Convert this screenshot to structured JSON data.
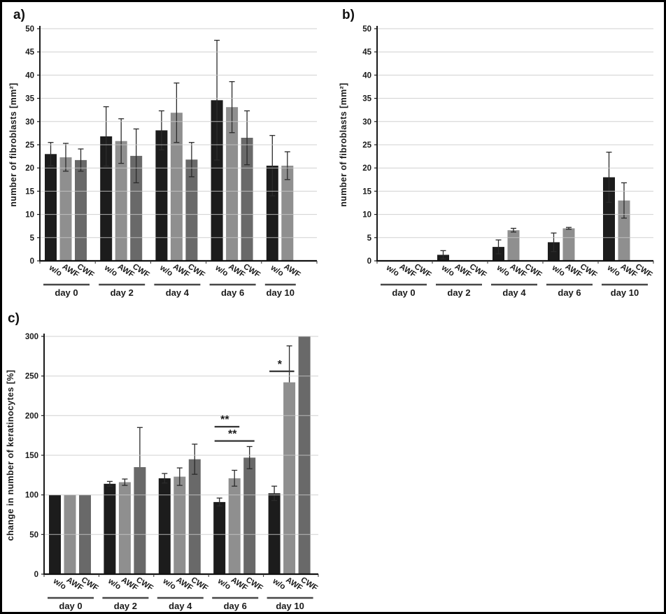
{
  "figure": {
    "background": "#ffffff",
    "border_color": "#000000",
    "panels": [
      {
        "label": "a)"
      },
      {
        "label": "b)"
      },
      {
        "label": "c)"
      }
    ]
  },
  "chart_data": [
    {
      "type": "bar",
      "panel_label": "a)",
      "title": "",
      "xlabel": "",
      "ylabel": "number of fibroblasts [mm²]",
      "ylim": [
        0,
        50
      ],
      "ytick_step": 5,
      "grid": true,
      "legend_position": "none",
      "series_labels": [
        "w/o",
        "AWF",
        "CWF"
      ],
      "bar_colors": [
        "#1c1c1c",
        "#8f8f8f",
        "#696969"
      ],
      "categories": [
        "day 0",
        "day 2",
        "day 4",
        "day 6",
        "day 10"
      ],
      "groups": [
        {
          "category": "day 0",
          "labels": [
            "w/o",
            "AWF",
            "CWF"
          ],
          "values": [
            23.0,
            22.3,
            21.7
          ],
          "errors": [
            2.5,
            3.0,
            2.4
          ]
        },
        {
          "category": "day 2",
          "labels": [
            "w/o",
            "AWF",
            "CWF"
          ],
          "values": [
            26.8,
            25.8,
            22.6
          ],
          "errors": [
            6.4,
            4.8,
            5.8
          ]
        },
        {
          "category": "day 4",
          "labels": [
            "w/o",
            "AWF",
            "CWF"
          ],
          "values": [
            28.1,
            31.9,
            21.8
          ],
          "errors": [
            4.2,
            6.4,
            3.7
          ]
        },
        {
          "category": "day 6",
          "labels": [
            "w/o",
            "AWF",
            "CWF"
          ],
          "values": [
            34.6,
            33.1,
            26.5
          ],
          "errors": [
            12.9,
            5.5,
            5.8
          ]
        },
        {
          "category": "day 10",
          "labels": [
            "w/o",
            "AWF"
          ],
          "values": [
            20.5,
            20.5,
            null
          ],
          "errors": [
            6.5,
            3.0,
            null
          ]
        }
      ],
      "annotations": []
    },
    {
      "type": "bar",
      "panel_label": "b)",
      "title": "",
      "xlabel": "",
      "ylabel": "number of fibroblasts [mm²]",
      "ylim": [
        0,
        50
      ],
      "ytick_step": 5,
      "grid": true,
      "legend_position": "none",
      "series_labels": [
        "w/o",
        "AWF",
        "CWF"
      ],
      "bar_colors": [
        "#1c1c1c",
        "#8f8f8f",
        "#696969"
      ],
      "categories": [
        "day 0",
        "day 2",
        "day 4",
        "day 6",
        "day 10"
      ],
      "groups": [
        {
          "category": "day 0",
          "labels": [
            "w/o",
            "AWF",
            "CWF"
          ],
          "values": [
            null,
            null,
            null
          ],
          "errors": [
            null,
            null,
            null
          ]
        },
        {
          "category": "day 2",
          "labels": [
            "w/o",
            "AWF",
            "CWF"
          ],
          "values": [
            1.3,
            null,
            null
          ],
          "errors": [
            0.9,
            null,
            null
          ]
        },
        {
          "category": "day 4",
          "labels": [
            "w/o",
            "AWF",
            "CWF"
          ],
          "values": [
            3.0,
            6.6,
            null
          ],
          "errors": [
            1.5,
            0.4,
            null
          ]
        },
        {
          "category": "day 6",
          "labels": [
            "w/o",
            "AWF",
            "CWF"
          ],
          "values": [
            4.0,
            7.0,
            null
          ],
          "errors": [
            2.0,
            0.2,
            null
          ]
        },
        {
          "category": "day 10",
          "labels": [
            "w/o",
            "AWF",
            "CWF"
          ],
          "values": [
            18.0,
            13.0,
            null
          ],
          "errors": [
            5.4,
            3.8,
            null
          ]
        }
      ],
      "annotations": []
    },
    {
      "type": "bar",
      "panel_label": "c)",
      "title": "",
      "xlabel": "",
      "ylabel": "change in number of keratinocytes [%]",
      "ylim": [
        0,
        300
      ],
      "ytick_step": 50,
      "grid": true,
      "legend_position": "none",
      "series_labels": [
        "w/o",
        "AWF",
        "CWF"
      ],
      "bar_colors": [
        "#1c1c1c",
        "#8f8f8f",
        "#696969"
      ],
      "categories": [
        "day 0",
        "day 2",
        "day 4",
        "day 6",
        "day 10"
      ],
      "groups": [
        {
          "category": "day 0",
          "labels": [
            "w/o",
            "AWF",
            "CWF"
          ],
          "values": [
            100,
            100,
            100
          ],
          "errors": [
            null,
            null,
            null
          ]
        },
        {
          "category": "day 2",
          "labels": [
            "w/o",
            "AWF",
            "CWF"
          ],
          "values": [
            114,
            116,
            135
          ],
          "errors": [
            3,
            4,
            50
          ],
          "err_up_only": [
            false,
            false,
            true
          ]
        },
        {
          "category": "day 4",
          "labels": [
            "w/o",
            "AWF",
            "CWF"
          ],
          "values": [
            121,
            123,
            145
          ],
          "errors": [
            6,
            11,
            19
          ]
        },
        {
          "category": "day 6",
          "labels": [
            "w/o",
            "AWF",
            "CWF"
          ],
          "values": [
            91,
            121,
            147
          ],
          "errors": [
            5,
            10,
            14
          ]
        },
        {
          "category": "day 10",
          "labels": [
            "w/o",
            "AWF",
            "CWF"
          ],
          "values": [
            102,
            242,
            300
          ],
          "errors": [
            9,
            46,
            null
          ],
          "err_up_only": [
            false,
            true,
            false
          ]
        }
      ],
      "annotations": [
        {
          "label": "**",
          "group": 3,
          "from": 0,
          "to": 1,
          "y": 186
        },
        {
          "label": "**",
          "group": 3,
          "from": 0,
          "to": 2,
          "y": 168
        },
        {
          "label": "*",
          "group": 4,
          "from": 0,
          "to": 1,
          "y": 256
        }
      ]
    }
  ]
}
